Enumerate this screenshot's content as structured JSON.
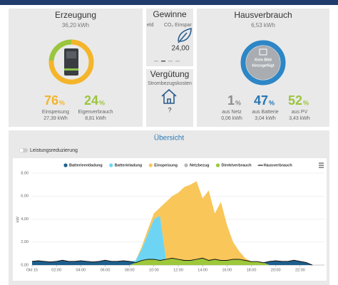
{
  "erzeugung": {
    "title": "Erzeugung",
    "total": "36,20 kWh",
    "stats": [
      {
        "percent": 76,
        "unit": "%",
        "label": "Einspeisung",
        "amount": "27,39 kWh",
        "color": "#f4b52a"
      },
      {
        "percent": 24,
        "unit": "%",
        "label": "Eigenverbrauch",
        "amount": "8,81 kWh",
        "color": "#9bc53d"
      }
    ]
  },
  "gewinne": {
    "title": "Gewinne",
    "tabs": [
      "eld",
      "CO₂ Einspar"
    ],
    "value": "24,00"
  },
  "verguetung": {
    "title": "Vergütung",
    "label": "Strombezugskosten",
    "value": "?"
  },
  "hausverbrauch": {
    "title": "Hausverbrauch",
    "total": "6,53 kWh",
    "image_text": [
      "Kein Bild",
      "hinzugefügt"
    ],
    "stats": [
      {
        "percent": 1,
        "unit": "%",
        "label": "aus Netz",
        "amount": "0,06 kWh",
        "color": "#8c8c8c"
      },
      {
        "percent": 47,
        "unit": "%",
        "label": "aus Batterie",
        "amount": "3,04 kWh",
        "color": "#2777b4"
      },
      {
        "percent": 52,
        "unit": "%",
        "label": "aus PV",
        "amount": "3,43 kWh",
        "color": "#9bc53d"
      }
    ]
  },
  "uebersicht": {
    "title": "Übersicht",
    "toggle": "Leistungsreduzierung"
  },
  "chart_data": {
    "type": "area",
    "y_label": "kW",
    "x": [
      0,
      0.5,
      1,
      1.5,
      2,
      2.5,
      3,
      3.5,
      4,
      4.5,
      5,
      5.5,
      6,
      6.5,
      7,
      7.5,
      8,
      8.5,
      9,
      9.5,
      10,
      10.5,
      11,
      11.5,
      12,
      12.5,
      13,
      13.5,
      14,
      14.5,
      15,
      15.5,
      16,
      16.5,
      17,
      17.5,
      18,
      18.5,
      19,
      19.5,
      20,
      20.5,
      21,
      21.5,
      22,
      22.5,
      23
    ],
    "xlim": [
      0,
      24
    ],
    "xticks": [
      {
        "value": 0,
        "label": "Okt 15"
      },
      {
        "value": 2,
        "label": "02:00"
      },
      {
        "value": 4,
        "label": "04:00"
      },
      {
        "value": 6,
        "label": "06:00"
      },
      {
        "value": 8,
        "label": "08:00"
      },
      {
        "value": 10,
        "label": "10:00"
      },
      {
        "value": 12,
        "label": "12:00"
      },
      {
        "value": 14,
        "label": "14:00"
      },
      {
        "value": 16,
        "label": "16:00"
      },
      {
        "value": 18,
        "label": "18:00"
      },
      {
        "value": 20,
        "label": "20:00"
      },
      {
        "value": 22,
        "label": "22:00"
      }
    ],
    "ylim": [
      0,
      8
    ],
    "yticks": [
      {
        "value": 0,
        "label": "0,00"
      },
      {
        "value": 2,
        "label": "2,00"
      },
      {
        "value": 4,
        "label": "4,00"
      },
      {
        "value": 6,
        "label": "6,00"
      },
      {
        "value": 8,
        "label": "8,00"
      }
    ],
    "grid": true,
    "series": [
      {
        "name": "Batterieentladung",
        "color": "#1d5f8c",
        "values": [
          0.3,
          0.35,
          0.3,
          0.25,
          0.3,
          0.4,
          0.3,
          0.3,
          0.35,
          0.3,
          0.25,
          0.3,
          0.4,
          0.3,
          0.3,
          0.35,
          0.3,
          0,
          0,
          0,
          0,
          0,
          0,
          0,
          0,
          0,
          0,
          0,
          0,
          0,
          0,
          0,
          0,
          0,
          0,
          0,
          0,
          0,
          0,
          0.3,
          0.35,
          0.3,
          0.3,
          0.4,
          0.3,
          0.2,
          0
        ]
      },
      {
        "name": "Batterieladung",
        "color": "#6dd5f3",
        "values": [
          0,
          0,
          0,
          0,
          0,
          0,
          0,
          0,
          0,
          0,
          0,
          0,
          0,
          0,
          0,
          0,
          0,
          0.2,
          1.0,
          2.2,
          3.5,
          3.9,
          0,
          0,
          0,
          0,
          0,
          0,
          0,
          0,
          0,
          0,
          0,
          0,
          0,
          0,
          0,
          0,
          0,
          0,
          0,
          0,
          0,
          0,
          0,
          0,
          0
        ]
      },
      {
        "name": "Einspeisung",
        "color": "#f9c65a",
        "values": [
          0,
          0,
          0,
          0,
          0,
          0,
          0,
          0,
          0,
          0,
          0,
          0,
          0,
          0,
          0,
          0,
          0,
          0,
          0.2,
          0.4,
          0.5,
          0.7,
          5.0,
          5.4,
          5.8,
          6.4,
          6.6,
          6.8,
          5.2,
          6.1,
          4.0,
          5.1,
          3.1,
          1.5,
          0.7,
          0.2,
          0,
          0,
          0,
          0,
          0,
          0,
          0,
          0,
          0,
          0,
          0
        ]
      },
      {
        "name": "Netzbezug",
        "color": "#b5b5b5",
        "values": [
          0.02,
          0.02,
          0.02,
          0.02,
          0.02,
          0.02,
          0.02,
          0.02,
          0.02,
          0.02,
          0.02,
          0.02,
          0.02,
          0.02,
          0.02,
          0.02,
          0.02,
          0,
          0,
          0,
          0,
          0,
          0,
          0,
          0,
          0,
          0,
          0,
          0,
          0,
          0,
          0,
          0,
          0,
          0,
          0,
          0,
          0,
          0,
          0.02,
          0.02,
          0.02,
          0.02,
          0.02,
          0.02,
          0.02,
          0
        ]
      },
      {
        "name": "Direktverbrauch",
        "color": "#9cc83a",
        "values": [
          0,
          0,
          0,
          0,
          0,
          0,
          0,
          0,
          0,
          0,
          0,
          0,
          0,
          0,
          0,
          0,
          0,
          0.2,
          0.4,
          0.5,
          0.5,
          0.4,
          0.5,
          0.6,
          0.5,
          0.4,
          0.4,
          0.5,
          0.6,
          0.4,
          0.5,
          0.4,
          0.4,
          0.5,
          0.5,
          0.4,
          0.3,
          0.3,
          0.2,
          0,
          0,
          0,
          0,
          0,
          0,
          0,
          0
        ]
      },
      {
        "name": "Hausverbrauch",
        "color": "#111111",
        "type": "line",
        "values": [
          0.32,
          0.37,
          0.32,
          0.27,
          0.32,
          0.42,
          0.32,
          0.32,
          0.37,
          0.32,
          0.27,
          0.32,
          0.42,
          0.32,
          0.32,
          0.37,
          0.32,
          0.2,
          0.4,
          0.5,
          0.5,
          0.4,
          0.5,
          0.6,
          0.5,
          0.4,
          0.4,
          0.5,
          0.6,
          0.4,
          0.5,
          0.4,
          0.4,
          0.5,
          0.5,
          0.4,
          0.3,
          0.3,
          0.2,
          0.32,
          0.37,
          0.32,
          0.32,
          0.42,
          0.32,
          0.22,
          0
        ]
      }
    ]
  }
}
